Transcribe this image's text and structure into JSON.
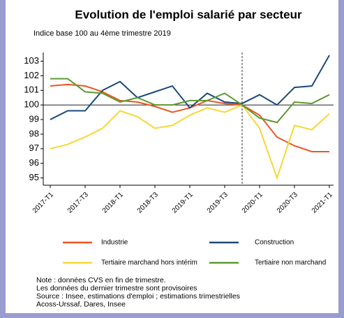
{
  "chart_data": {
    "type": "line",
    "title": "Evolution de l'emploi salarié par secteur",
    "subtitle": "Indice base 100 au 4ème trimestre 2019",
    "categories": [
      "2017-T1",
      null,
      "2017-T3",
      null,
      "2018-T1",
      null,
      "2018-T3",
      null,
      "2019-T1",
      null,
      "2019-T3",
      null,
      "2020-T1",
      null,
      "2020-T3",
      null,
      "2021-T1"
    ],
    "series": [
      {
        "name": "Industrie",
        "color": "#ee5522",
        "values": [
          101.3,
          101.4,
          101.3,
          100.9,
          100.3,
          100.2,
          99.9,
          99.5,
          99.8,
          100.3,
          100.1,
          100.0,
          99.3,
          97.8,
          97.2,
          96.8,
          96.8
        ]
      },
      {
        "name": "Construction",
        "color": "#1b4a7a",
        "values": [
          99.0,
          99.6,
          99.6,
          101.0,
          101.6,
          100.5,
          100.9,
          101.3,
          99.8,
          100.8,
          100.2,
          100.1,
          100.7,
          100.0,
          101.2,
          101.3,
          103.4
        ]
      },
      {
        "name": "Tertiaire marchand hors intérim",
        "color": "#f7d733",
        "values": [
          97.0,
          97.3,
          97.8,
          98.4,
          99.6,
          99.2,
          98.4,
          98.6,
          99.3,
          99.8,
          99.5,
          100.0,
          98.4,
          95.0,
          98.6,
          98.3,
          99.4
        ]
      },
      {
        "name": "Tertiaire non marchand",
        "color": "#5b9a2f",
        "values": [
          101.8,
          101.8,
          100.9,
          100.8,
          100.2,
          100.5,
          100.0,
          100.0,
          100.3,
          100.3,
          100.8,
          100.0,
          99.1,
          98.8,
          100.2,
          100.1,
          100.7
        ]
      }
    ],
    "ylim": [
      94.5,
      103.6
    ],
    "yticks": [
      95,
      96,
      97,
      98,
      99,
      100,
      101,
      102,
      103
    ],
    "reference_y": 100,
    "vline_index": 11,
    "grid": false,
    "notes": [
      "Note : données CVS en fin de trimestre.",
      "Les données du dernier trimestre sont provisoires",
      "Source : Insee, estimations d'emploi ; estimations trimestrielles",
      "Acoss-Urssaf, Dares, Insee"
    ]
  }
}
